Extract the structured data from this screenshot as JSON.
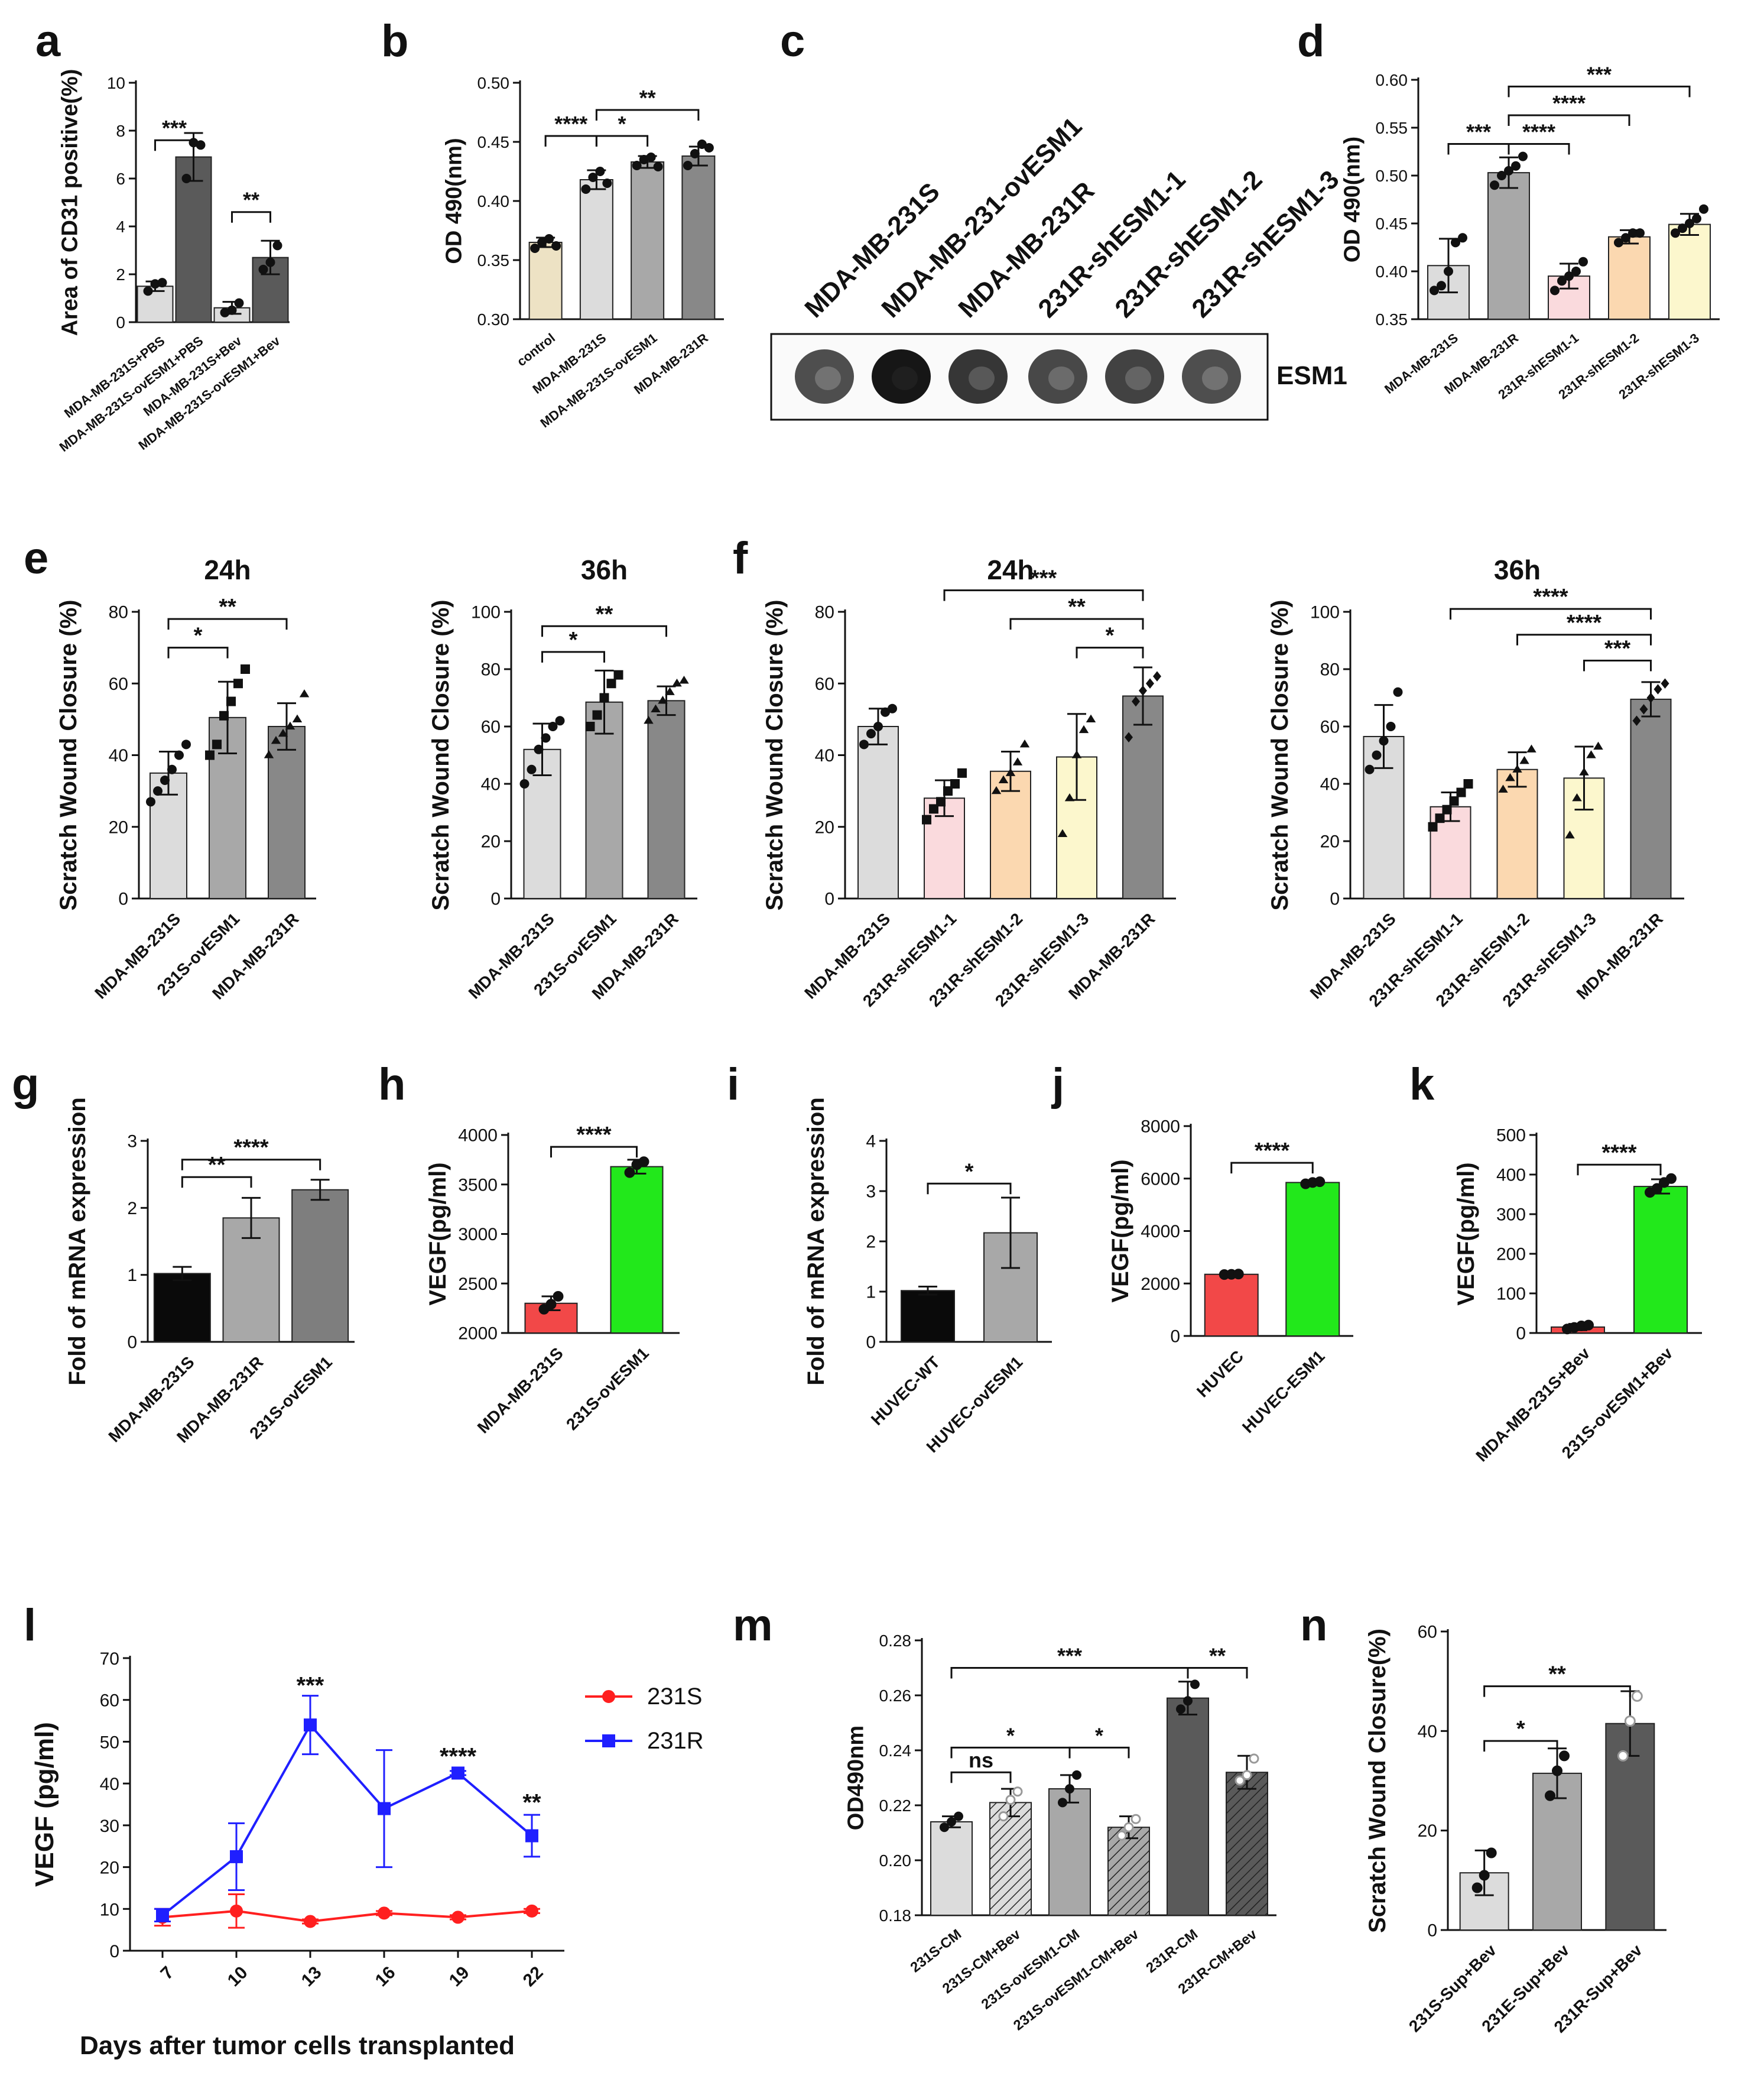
{
  "figure": {
    "background": "#ffffff",
    "axis_color": "#111111",
    "panel_letters": [
      "a",
      "b",
      "c",
      "d",
      "e",
      "f",
      "g",
      "h",
      "i",
      "j",
      "k",
      "l",
      "m",
      "n"
    ]
  },
  "chart_data": [
    {
      "id": "a",
      "letter": "a",
      "type": "bar",
      "title": "",
      "ylabel": "Area of CD31 positive(%)",
      "ylim": [
        0,
        10
      ],
      "yticks": [
        0,
        2,
        4,
        6,
        8,
        10
      ],
      "categories": [
        "MDA-MB-231S+PBS",
        "MDA-MB-231S-ovESM1+PBS",
        "MDA-MB-231S+Bev",
        "MDA-MB-231S-ovESM1+Bev"
      ],
      "values": [
        1.5,
        6.9,
        0.6,
        2.7
      ],
      "errors": [
        0.2,
        1.0,
        0.25,
        0.7
      ],
      "points": [
        [
          1.3,
          1.6,
          1.65
        ],
        [
          6.0,
          7.5,
          7.4
        ],
        [
          0.4,
          0.5,
          0.8
        ],
        [
          2.2,
          2.5,
          3.2
        ]
      ],
      "colors": [
        "#dcdcdc",
        "#5a5a5a",
        "#dcdcdc",
        "#5a5a5a"
      ],
      "significance": [
        {
          "from": 0,
          "to": 1,
          "label": "***",
          "level": 7.6
        },
        {
          "from": 2,
          "to": 3,
          "label": "**",
          "level": 4.6
        }
      ]
    },
    {
      "id": "b",
      "letter": "b",
      "type": "bar",
      "title": "",
      "ylabel": "OD 490(nm)",
      "ylim": [
        0.3,
        0.5
      ],
      "yticks": [
        0.3,
        0.35,
        0.4,
        0.45,
        0.5
      ],
      "categories": [
        "control",
        "MDA-MB-231S",
        "MDA-MB-231S-ovESM1",
        "MDA-MB-231R"
      ],
      "values": [
        0.365,
        0.418,
        0.433,
        0.438
      ],
      "errors": [
        0.004,
        0.008,
        0.005,
        0.008
      ],
      "points": [
        [
          0.36,
          0.365,
          0.368,
          0.362
        ],
        [
          0.41,
          0.42,
          0.425,
          0.415
        ],
        [
          0.43,
          0.435,
          0.437,
          0.429
        ],
        [
          0.43,
          0.44,
          0.448,
          0.445
        ]
      ],
      "colors": [
        "#ede2c4",
        "#dcdcdc",
        "#a8a8a8",
        "#888888"
      ],
      "significance": [
        {
          "from": 0,
          "to": 1,
          "label": "****",
          "level": 0.455
        },
        {
          "from": 1,
          "to": 2,
          "label": "*",
          "level": 0.455
        },
        {
          "from": 1,
          "to": 3,
          "label": "**",
          "level": 0.477
        }
      ]
    },
    {
      "id": "d",
      "letter": "d",
      "type": "bar",
      "title": "",
      "ylabel": "OD 490(nm)",
      "ylim": [
        0.35,
        0.6
      ],
      "yticks": [
        0.35,
        0.4,
        0.45,
        0.5,
        0.55,
        0.6
      ],
      "categories": [
        "MDA-MB-231S",
        "MDA-MB-231R",
        "231R-shESM1-1",
        "231R-shESM1-2",
        "231R-shESM1-3"
      ],
      "values": [
        0.406,
        0.503,
        0.395,
        0.436,
        0.449
      ],
      "errors": [
        0.028,
        0.016,
        0.013,
        0.007,
        0.011
      ],
      "points": [
        [
          0.38,
          0.385,
          0.4,
          0.43,
          0.435
        ],
        [
          0.49,
          0.5,
          0.505,
          0.51,
          0.52
        ],
        [
          0.38,
          0.39,
          0.395,
          0.4,
          0.41
        ],
        [
          0.43,
          0.435,
          0.44,
          0.44
        ],
        [
          0.44,
          0.445,
          0.45,
          0.455,
          0.465
        ]
      ],
      "colors": [
        "#dcdcdc",
        "#a8a8a8",
        "#fadadd",
        "#fbd8b0",
        "#fcf7cd"
      ],
      "significance": [
        {
          "from": 0,
          "to": 1,
          "label": "***",
          "level": 0.533
        },
        {
          "from": 1,
          "to": 2,
          "label": "****",
          "level": 0.533
        },
        {
          "from": 1,
          "to": 3,
          "label": "****",
          "level": 0.563
        },
        {
          "from": 1,
          "to": 4,
          "label": "***",
          "level": 0.593
        }
      ]
    },
    {
      "id": "e1",
      "letter": "e",
      "type": "bar",
      "title": "24h",
      "ylabel": "Scratch Wound Closure (%)",
      "ylim": [
        0,
        80
      ],
      "yticks": [
        0,
        20,
        40,
        60,
        80
      ],
      "categories": [
        "MDA-MB-231S",
        "231S-ovESM1",
        "MDA-MB-231R"
      ],
      "values": [
        35,
        50.5,
        48
      ],
      "errors": [
        6,
        10,
        6.5
      ],
      "points": [
        [
          27,
          30,
          33,
          36,
          40,
          43
        ],
        [
          40,
          43,
          51,
          55,
          60,
          64
        ],
        [
          40,
          44,
          46,
          48,
          50,
          57
        ]
      ],
      "colors": [
        "#dcdcdc",
        "#a8a8a8",
        "#888888"
      ],
      "significance": [
        {
          "from": 0,
          "to": 1,
          "label": "*",
          "level": 70
        },
        {
          "from": 0,
          "to": 2,
          "label": "**",
          "level": 78
        }
      ]
    },
    {
      "id": "e2",
      "letter": "",
      "type": "bar",
      "title": "36h",
      "ylabel": "Scratch Wound Closure (%)",
      "ylim": [
        0,
        100
      ],
      "yticks": [
        0,
        20,
        40,
        60,
        80,
        100
      ],
      "categories": [
        "MDA-MB-231S",
        "231S-ovESM1",
        "MDA-MB-231R"
      ],
      "values": [
        52,
        68.5,
        69
      ],
      "errors": [
        9,
        11,
        5
      ],
      "points": [
        [
          40,
          45,
          52,
          56,
          60,
          62
        ],
        [
          60,
          64,
          70,
          75,
          78
        ],
        [
          62,
          66,
          69,
          72,
          75,
          76
        ]
      ],
      "colors": [
        "#dcdcdc",
        "#a8a8a8",
        "#888888"
      ],
      "significance": [
        {
          "from": 0,
          "to": 1,
          "label": "*",
          "level": 86
        },
        {
          "from": 0,
          "to": 2,
          "label": "**",
          "level": 95
        }
      ]
    },
    {
      "id": "f1",
      "letter": "f",
      "type": "bar",
      "title": "24h",
      "ylabel": "Scratch Wound Closure (%)",
      "ylim": [
        0,
        80
      ],
      "yticks": [
        0,
        20,
        40,
        60,
        80
      ],
      "categories": [
        "MDA-MB-231S",
        "231R-shESM1-1",
        "231R-shESM1-2",
        "231R-shESM1-3",
        "MDA-MB-231R"
      ],
      "values": [
        48,
        28,
        35.5,
        39.5,
        56.5
      ],
      "errors": [
        5,
        5,
        5.5,
        12,
        8
      ],
      "points": [
        [
          43,
          46,
          48,
          52,
          53
        ],
        [
          22,
          25,
          27,
          30,
          32,
          35
        ],
        [
          30,
          33,
          35,
          38,
          43
        ],
        [
          18,
          28,
          40,
          47,
          50
        ],
        [
          45,
          55,
          58,
          60,
          62
        ]
      ],
      "colors": [
        "#dcdcdc",
        "#fadadd",
        "#fbd8b0",
        "#fcf7cd",
        "#888888"
      ],
      "significance": [
        {
          "from": 4,
          "to": 3,
          "label": "*",
          "level": 70
        },
        {
          "from": 4,
          "to": 2,
          "label": "**",
          "level": 78
        },
        {
          "from": 4,
          "to": 1,
          "label": "***",
          "level": 86
        }
      ]
    },
    {
      "id": "f2",
      "letter": "",
      "type": "bar",
      "title": "36h",
      "ylabel": "Scratch Wound Closure (%)",
      "ylim": [
        0,
        100
      ],
      "yticks": [
        0,
        20,
        40,
        60,
        80,
        100
      ],
      "categories": [
        "MDA-MB-231S",
        "231R-shESM1-1",
        "231R-shESM1-2",
        "231R-shESM1-3",
        "MDA-MB-231R"
      ],
      "values": [
        56.5,
        32,
        45,
        42,
        69.5
      ],
      "errors": [
        11,
        5,
        6,
        11,
        6
      ],
      "points": [
        [
          45,
          50,
          55,
          60,
          72
        ],
        [
          25,
          28,
          31,
          34,
          37,
          40
        ],
        [
          38,
          42,
          45,
          48,
          52
        ],
        [
          22,
          35,
          44,
          50,
          53
        ],
        [
          62,
          66,
          70,
          73,
          75
        ]
      ],
      "colors": [
        "#dcdcdc",
        "#fadadd",
        "#fbd8b0",
        "#fcf7cd",
        "#888888"
      ],
      "significance": [
        {
          "from": 4,
          "to": 3,
          "label": "***",
          "level": 83
        },
        {
          "from": 4,
          "to": 2,
          "label": "****",
          "level": 92
        },
        {
          "from": 4,
          "to": 1,
          "label": "****",
          "level": 101
        }
      ]
    },
    {
      "id": "g",
      "letter": "g",
      "type": "bar",
      "title": "",
      "ylabel": "Fold of  mRNA expression",
      "ylim": [
        0,
        3
      ],
      "yticks": [
        0,
        1,
        2,
        3
      ],
      "categories": [
        "MDA-MB-231S",
        "MDA-MB-231R",
        "231S-ovESM1"
      ],
      "values": [
        1.02,
        1.85,
        2.27
      ],
      "errors": [
        0.1,
        0.3,
        0.15
      ],
      "points": [],
      "colors": [
        "#0a0a0a",
        "#a8a8a8",
        "#7e7e7e"
      ],
      "significance": [
        {
          "from": 0,
          "to": 1,
          "label": "**",
          "level": 2.46
        },
        {
          "from": 0,
          "to": 2,
          "label": "****",
          "level": 2.72
        }
      ]
    },
    {
      "id": "h",
      "letter": "h",
      "type": "bar",
      "title": "",
      "ylabel": "VEGF(pg/ml)",
      "ylim": [
        2000,
        4000
      ],
      "yticks": [
        2000,
        2500,
        3000,
        3500,
        4000
      ],
      "categories": [
        "MDA-MB-231S",
        "231S-ovESM1"
      ],
      "values": [
        2300,
        3680
      ],
      "errors": [
        70,
        70
      ],
      "points": [
        [
          2240,
          2290,
          2370
        ],
        [
          3620,
          3700,
          3730
        ]
      ],
      "colors": [
        "#f24848",
        "#22e81b"
      ],
      "significance": [
        {
          "from": 0,
          "to": 1,
          "label": "****",
          "level": 3880
        }
      ]
    },
    {
      "id": "i",
      "letter": "i",
      "type": "bar",
      "title": "",
      "ylabel": "Fold of mRNA expression",
      "ylim": [
        0,
        4
      ],
      "yticks": [
        0,
        1,
        2,
        3,
        4
      ],
      "categories": [
        "HUVEC-WT",
        "HUVEC-ovESM1"
      ],
      "values": [
        1.02,
        2.17
      ],
      "errors": [
        0.08,
        0.7
      ],
      "points": [],
      "colors": [
        "#0a0a0a",
        "#a8a8a8"
      ],
      "significance": [
        {
          "from": 0,
          "to": 1,
          "label": "*",
          "level": 3.15
        }
      ]
    },
    {
      "id": "j",
      "letter": "j",
      "type": "bar",
      "title": "",
      "ylabel": "VEGF(pg/ml)",
      "ylim": [
        0,
        8000
      ],
      "yticks": [
        0,
        2000,
        4000,
        6000,
        8000
      ],
      "categories": [
        "HUVEC",
        "HUVEC-ESM1"
      ],
      "values": [
        2350,
        5850
      ],
      "errors": [
        40,
        80
      ],
      "points": [
        [
          2340,
          2350,
          2360
        ],
        [
          5800,
          5850,
          5880
        ]
      ],
      "colors": [
        "#f24848",
        "#22e81b"
      ],
      "significance": [
        {
          "from": 0,
          "to": 1,
          "label": "****",
          "level": 6600
        }
      ]
    },
    {
      "id": "k",
      "letter": "k",
      "type": "bar",
      "title": "",
      "ylabel": "VEGF(pg/ml)",
      "ylim": [
        0,
        500
      ],
      "yticks": [
        0,
        100,
        200,
        300,
        400,
        500
      ],
      "categories": [
        "MDA-MB-231S+Bev",
        "231S-ovESM1+Bev"
      ],
      "values": [
        15,
        370
      ],
      "errors": [
        8,
        18
      ],
      "points": [
        [
          10,
          14,
          18,
          20
        ],
        [
          355,
          365,
          380,
          390
        ]
      ],
      "colors": [
        "#f24848",
        "#22e81b"
      ],
      "significance": [
        {
          "from": 0,
          "to": 1,
          "label": "****",
          "level": 425
        }
      ]
    },
    {
      "id": "l",
      "letter": "l",
      "type": "line",
      "title": "",
      "ylabel": "VEGF (pg/ml)",
      "xlabel": "Days after tumor cells transplanted",
      "ylim": [
        0,
        70
      ],
      "yticks": [
        0,
        10,
        20,
        30,
        40,
        50,
        60,
        70
      ],
      "x": [
        7,
        10,
        13,
        16,
        19,
        22
      ],
      "series": [
        {
          "name": "231S",
          "color": "#ff1f1f",
          "marker": "circle",
          "values": [
            8,
            9.5,
            7,
            9,
            8,
            9.5
          ],
          "errors": [
            2,
            4,
            0.5,
            0.5,
            0.5,
            0.5
          ]
        },
        {
          "name": "231R",
          "color": "#1f1fff",
          "marker": "square",
          "values": [
            8.5,
            22.5,
            54,
            34,
            42.5,
            27.5
          ],
          "errors": [
            1.5,
            8,
            7,
            14,
            0.5,
            5
          ]
        }
      ],
      "annotations": [
        {
          "x": 13,
          "label": "***",
          "value": 63
        },
        {
          "x": 19,
          "label": "****",
          "value": 46
        },
        {
          "x": 22,
          "label": "**",
          "value": 35
        }
      ]
    },
    {
      "id": "m",
      "letter": "m",
      "type": "bar",
      "title": "",
      "ylabel": "OD490nm",
      "ylim": [
        0.18,
        0.28
      ],
      "yticks": [
        0.18,
        0.2,
        0.22,
        0.24,
        0.26,
        0.28
      ],
      "categories": [
        "231S-CM",
        "231S-CM+Bev",
        "231S-ovESM1-CM",
        "231S-ovESM1-CM+Bev",
        "231R-CM",
        "231R-CM+Bev"
      ],
      "values": [
        0.214,
        0.221,
        0.226,
        0.212,
        0.259,
        0.232
      ],
      "errors": [
        0.002,
        0.005,
        0.005,
        0.004,
        0.006,
        0.006
      ],
      "points": [
        [
          0.212,
          0.214,
          0.216
        ],
        [
          0.216,
          0.222,
          0.225
        ],
        [
          0.221,
          0.226,
          0.231
        ],
        [
          0.209,
          0.212,
          0.215
        ],
        [
          0.255,
          0.258,
          0.264
        ],
        [
          0.229,
          0.231,
          0.237
        ]
      ],
      "colors": [
        "#dcdcdc",
        "#dcdcdc",
        "#a8a8a8",
        "#a8a8a8",
        "#5a5a5a",
        "#5a5a5a"
      ],
      "hatched": [
        false,
        true,
        false,
        true,
        false,
        true
      ],
      "significance": [
        {
          "from": 0,
          "to": 1,
          "label": "ns",
          "level": 0.232
        },
        {
          "from": 0,
          "to": 2,
          "label": "*",
          "level": 0.241
        },
        {
          "from": 2,
          "to": 3,
          "label": "*",
          "level": 0.241
        },
        {
          "from": 4,
          "to": 5,
          "label": "**",
          "level": 0.27
        },
        {
          "from": 0,
          "to": 4,
          "label": "***",
          "level": 0.27
        }
      ]
    },
    {
      "id": "n",
      "letter": "n",
      "type": "bar",
      "title": "",
      "ylabel": "Scratch Wound Closure(%)",
      "ylim": [
        0,
        60
      ],
      "yticks": [
        0,
        20,
        40,
        60
      ],
      "categories": [
        "231S-Sup+Bev",
        "231E-Sup+Bev",
        "231R-Sup+Bev"
      ],
      "values": [
        11.5,
        31.5,
        41.5
      ],
      "errors": [
        4.5,
        5,
        6.5
      ],
      "points": [
        [
          8.5,
          11,
          15.5
        ],
        [
          27,
          32,
          35
        ],
        [
          35,
          42,
          47
        ]
      ],
      "colors": [
        "#dcdcdc",
        "#a8a8a8",
        "#5a5a5a"
      ],
      "significance": [
        {
          "from": 0,
          "to": 1,
          "label": "*",
          "level": 38
        },
        {
          "from": 0,
          "to": 2,
          "label": "**",
          "level": 49
        }
      ]
    }
  ],
  "blot": {
    "letter": "c",
    "lanes": [
      "MDA-MB-231S",
      "MDA-MB-231-ovESM1",
      "MDA-MB-231R",
      "231R-shESM1-1",
      "231R-shESM1-2",
      "231R-shESM1-3"
    ],
    "label": "ESM1",
    "intensities": [
      0.55,
      1.0,
      0.75,
      0.6,
      0.65,
      0.55
    ]
  }
}
